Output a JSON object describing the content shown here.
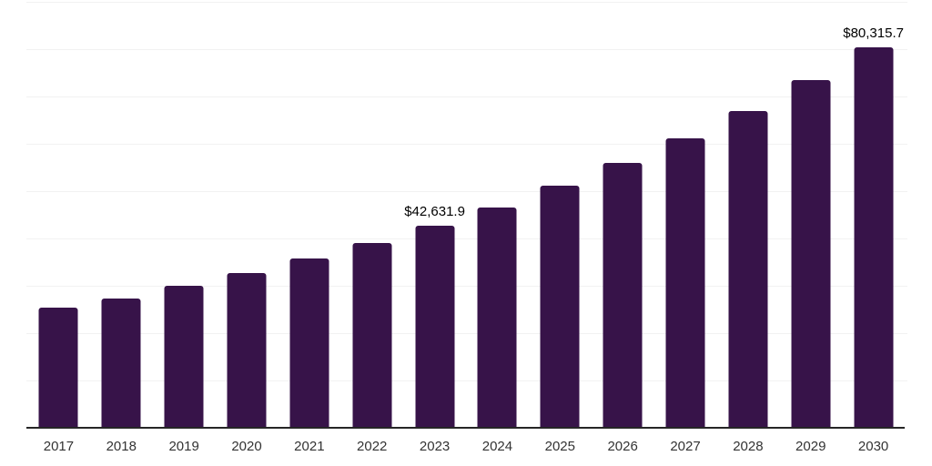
{
  "chart_data": {
    "type": "bar",
    "title": "",
    "xlabel": "",
    "ylabel": "",
    "categories": [
      "2017",
      "2018",
      "2019",
      "2020",
      "2021",
      "2022",
      "2023",
      "2024",
      "2025",
      "2026",
      "2027",
      "2028",
      "2029",
      "2030"
    ],
    "values": [
      25300,
      27400,
      30100,
      32700,
      35800,
      39100,
      42631.9,
      46500,
      51100,
      56000,
      61200,
      67000,
      73400,
      80315.7
    ],
    "data_labels": {
      "2023": "$42,631.9",
      "2030": "$80,315.7"
    },
    "ylim": [
      0,
      90000
    ],
    "grid_interval": 10000,
    "grid": "horizontal-only",
    "legend": "none",
    "y_axis_ticks_visible": false
  },
  "colors": {
    "bar": "#371349",
    "gridline": "#f2f2f2",
    "axis_line": "#262626",
    "tick_label": "#333333",
    "data_label": "#000000",
    "background": "#ffffff"
  }
}
